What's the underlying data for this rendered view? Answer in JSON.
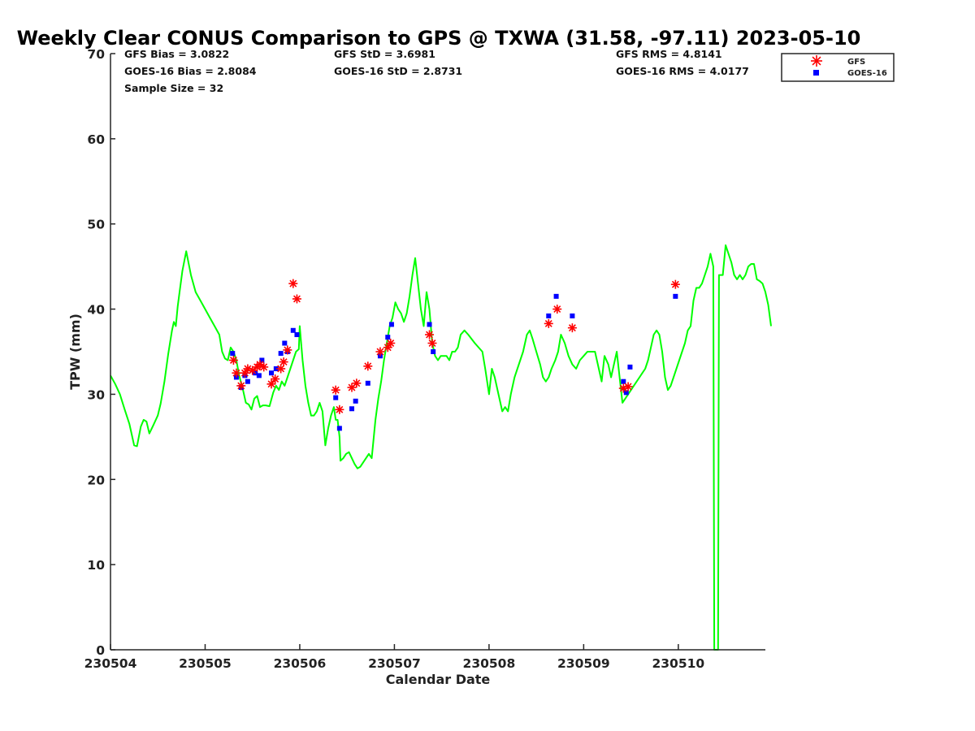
{
  "chart_data": {
    "type": "scatter",
    "title": "Weekly Clear CONUS Comparison to GPS @ TXWA (31.58, -97.11) 2023-05-10",
    "xlabel": "Calendar Date",
    "ylabel": "TPW (mm)",
    "xlim": [
      0,
      6.92
    ],
    "ylim": [
      0,
      70
    ],
    "x_ticks": [
      0,
      1,
      2,
      3,
      4,
      5,
      6
    ],
    "x_tick_labels": [
      "230504",
      "230505",
      "230506",
      "230507",
      "230508",
      "230509",
      "230510"
    ],
    "y_ticks": [
      0,
      10,
      20,
      30,
      40,
      50,
      60,
      70
    ],
    "y_tick_labels": [
      "0",
      "10",
      "20",
      "30",
      "40",
      "50",
      "60",
      "70"
    ],
    "grid": false,
    "legend_position": "top-right",
    "stats": {
      "gfs_bias": "GFS Bias = 3.0822",
      "goes_bias": "GOES-16 Bias = 2.8084",
      "sample_size": "Sample Size = 32",
      "gfs_std": "GFS StD = 3.6981",
      "goes_std": "GOES-16 StD = 2.8731",
      "gfs_rms": "GFS RMS = 4.8141",
      "goes_rms": "GOES-16 RMS = 4.0177"
    },
    "series": [
      {
        "name": "",
        "kind": "line",
        "color": "#00ff00",
        "points": [
          [
            0.0,
            32.2
          ],
          [
            0.05,
            31.2
          ],
          [
            0.1,
            30.0
          ],
          [
            0.15,
            28.2
          ],
          [
            0.2,
            26.5
          ],
          [
            0.25,
            24.0
          ],
          [
            0.28,
            23.9
          ],
          [
            0.32,
            26.2
          ],
          [
            0.35,
            27.0
          ],
          [
            0.38,
            26.8
          ],
          [
            0.41,
            25.4
          ],
          [
            0.45,
            26.3
          ],
          [
            0.5,
            27.5
          ],
          [
            0.53,
            28.9
          ],
          [
            0.57,
            31.5
          ],
          [
            0.61,
            34.7
          ],
          [
            0.65,
            37.5
          ],
          [
            0.67,
            38.5
          ],
          [
            0.69,
            38.0
          ],
          [
            0.71,
            40.3
          ],
          [
            0.73,
            42.0
          ],
          [
            0.76,
            44.5
          ],
          [
            0.8,
            46.8
          ],
          [
            0.85,
            44.0
          ],
          [
            0.9,
            42.0
          ],
          [
            0.95,
            41.0
          ],
          [
            1.0,
            40.0
          ],
          [
            1.05,
            39.0
          ],
          [
            1.1,
            38.0
          ],
          [
            1.15,
            37.0
          ],
          [
            1.18,
            35.0
          ],
          [
            1.21,
            34.2
          ],
          [
            1.24,
            34.0
          ],
          [
            1.27,
            35.5
          ],
          [
            1.3,
            35.0
          ],
          [
            1.33,
            34.0
          ],
          [
            1.36,
            32.2
          ],
          [
            1.4,
            30.5
          ],
          [
            1.43,
            29.0
          ],
          [
            1.46,
            28.8
          ],
          [
            1.49,
            28.2
          ],
          [
            1.52,
            29.5
          ],
          [
            1.55,
            29.8
          ],
          [
            1.58,
            28.5
          ],
          [
            1.61,
            28.7
          ],
          [
            1.64,
            28.7
          ],
          [
            1.68,
            28.6
          ],
          [
            1.72,
            30.2
          ],
          [
            1.75,
            31.0
          ],
          [
            1.78,
            30.5
          ],
          [
            1.81,
            31.5
          ],
          [
            1.84,
            31.0
          ],
          [
            1.87,
            32.0
          ],
          [
            1.9,
            33.0
          ],
          [
            1.93,
            34.0
          ],
          [
            1.96,
            35.0
          ],
          [
            1.99,
            35.3
          ],
          [
            2.0,
            38.0
          ],
          [
            2.03,
            34.0
          ],
          [
            2.06,
            31.0
          ],
          [
            2.09,
            29.0
          ],
          [
            2.12,
            27.5
          ],
          [
            2.15,
            27.5
          ],
          [
            2.18,
            28.0
          ],
          [
            2.21,
            29.0
          ],
          [
            2.24,
            28.0
          ],
          [
            2.27,
            24.0
          ],
          [
            2.3,
            26.0
          ],
          [
            2.33,
            27.5
          ],
          [
            2.36,
            28.5
          ],
          [
            2.38,
            27.0
          ],
          [
            2.4,
            27.0
          ],
          [
            2.42,
            25.0
          ],
          [
            2.43,
            22.2
          ],
          [
            2.46,
            22.5
          ],
          [
            2.49,
            23.0
          ],
          [
            2.52,
            23.2
          ],
          [
            2.55,
            22.5
          ],
          [
            2.58,
            21.8
          ],
          [
            2.61,
            21.3
          ],
          [
            2.64,
            21.5
          ],
          [
            2.67,
            22.0
          ],
          [
            2.7,
            22.5
          ],
          [
            2.73,
            23.0
          ],
          [
            2.76,
            22.5
          ],
          [
            2.8,
            27.0
          ],
          [
            2.83,
            29.5
          ],
          [
            2.86,
            31.5
          ],
          [
            2.89,
            34.0
          ],
          [
            2.92,
            36.0
          ],
          [
            2.95,
            38.0
          ],
          [
            2.98,
            39.0
          ],
          [
            3.01,
            40.8
          ],
          [
            3.04,
            40.0
          ],
          [
            3.07,
            39.5
          ],
          [
            3.1,
            38.5
          ],
          [
            3.13,
            39.5
          ],
          [
            3.16,
            41.5
          ],
          [
            3.19,
            44.0
          ],
          [
            3.22,
            46.0
          ],
          [
            3.25,
            43.0
          ],
          [
            3.28,
            40.0
          ],
          [
            3.31,
            38.0
          ],
          [
            3.34,
            42.0
          ],
          [
            3.37,
            40.0
          ],
          [
            3.4,
            36.0
          ],
          [
            3.43,
            34.5
          ],
          [
            3.46,
            34.0
          ],
          [
            3.49,
            34.5
          ],
          [
            3.52,
            34.5
          ],
          [
            3.55,
            34.5
          ],
          [
            3.58,
            34.0
          ],
          [
            3.61,
            35.0
          ],
          [
            3.64,
            35.0
          ],
          [
            3.67,
            35.5
          ],
          [
            3.7,
            37.0
          ],
          [
            3.74,
            37.5
          ],
          [
            3.78,
            37.0
          ],
          [
            3.85,
            36.0
          ],
          [
            3.93,
            35.0
          ],
          [
            3.96,
            33.0
          ],
          [
            4.0,
            30.0
          ],
          [
            4.03,
            33.0
          ],
          [
            4.06,
            32.0
          ],
          [
            4.1,
            30.0
          ],
          [
            4.14,
            28.0
          ],
          [
            4.17,
            28.5
          ],
          [
            4.2,
            28.0
          ],
          [
            4.23,
            30.0
          ],
          [
            4.27,
            32.0
          ],
          [
            4.3,
            33.0
          ],
          [
            4.33,
            34.0
          ],
          [
            4.36,
            35.0
          ],
          [
            4.4,
            37.0
          ],
          [
            4.43,
            37.5
          ],
          [
            4.46,
            36.5
          ],
          [
            4.5,
            35.0
          ],
          [
            4.54,
            33.5
          ],
          [
            4.57,
            32.0
          ],
          [
            4.6,
            31.5
          ],
          [
            4.63,
            32.0
          ],
          [
            4.66,
            33.0
          ],
          [
            4.7,
            34.0
          ],
          [
            4.73,
            35.0
          ],
          [
            4.76,
            37.0
          ],
          [
            4.8,
            36.0
          ],
          [
            4.84,
            34.5
          ],
          [
            4.88,
            33.5
          ],
          [
            4.92,
            33.0
          ],
          [
            4.96,
            34.0
          ],
          [
            5.0,
            34.5
          ],
          [
            5.04,
            35.0
          ],
          [
            5.08,
            35.0
          ],
          [
            5.12,
            35.0
          ],
          [
            5.16,
            33.0
          ],
          [
            5.19,
            31.5
          ],
          [
            5.22,
            34.5
          ],
          [
            5.26,
            33.5
          ],
          [
            5.29,
            32.0
          ],
          [
            5.32,
            33.5
          ],
          [
            5.35,
            35.0
          ],
          [
            5.38,
            32.0
          ],
          [
            5.41,
            29.0
          ],
          [
            5.44,
            29.5
          ],
          [
            5.47,
            30.0
          ],
          [
            5.5,
            30.5
          ],
          [
            5.53,
            31.0
          ],
          [
            5.56,
            31.5
          ],
          [
            5.59,
            32.0
          ],
          [
            5.62,
            32.5
          ],
          [
            5.65,
            33.0
          ],
          [
            5.68,
            34.0
          ],
          [
            5.71,
            35.5
          ],
          [
            5.74,
            37.0
          ],
          [
            5.77,
            37.5
          ],
          [
            5.8,
            37.0
          ],
          [
            5.83,
            35.0
          ],
          [
            5.86,
            32.0
          ],
          [
            5.89,
            30.5
          ],
          [
            5.92,
            31.0
          ],
          [
            5.95,
            32.0
          ],
          [
            5.98,
            33.0
          ],
          [
            6.01,
            34.0
          ],
          [
            6.04,
            35.0
          ],
          [
            6.07,
            36.0
          ],
          [
            6.1,
            37.5
          ],
          [
            6.13,
            38.0
          ],
          [
            6.16,
            41.0
          ],
          [
            6.19,
            42.5
          ],
          [
            6.22,
            42.5
          ],
          [
            6.25,
            43.0
          ],
          [
            6.28,
            44.0
          ],
          [
            6.31,
            45.0
          ],
          [
            6.34,
            46.5
          ],
          [
            6.37,
            45.0
          ],
          [
            6.38,
            0.0
          ],
          [
            6.42,
            0.0
          ],
          [
            6.43,
            44.0
          ],
          [
            6.47,
            44.0
          ],
          [
            6.5,
            47.5
          ],
          [
            6.53,
            46.5
          ],
          [
            6.56,
            45.5
          ],
          [
            6.59,
            44.0
          ],
          [
            6.62,
            43.5
          ],
          [
            6.65,
            44.0
          ],
          [
            6.68,
            43.5
          ],
          [
            6.71,
            44.0
          ],
          [
            6.74,
            45.0
          ],
          [
            6.77,
            45.3
          ],
          [
            6.8,
            45.3
          ],
          [
            6.83,
            43.5
          ],
          [
            6.86,
            43.3
          ],
          [
            6.89,
            43.0
          ],
          [
            6.92,
            42.0
          ],
          [
            6.95,
            40.5
          ],
          [
            6.98,
            38.0
          ]
        ]
      },
      {
        "name": "GFS",
        "kind": "scatter",
        "marker": "asterisk",
        "color": "#ff0000",
        "points": [
          [
            1.3,
            34.0
          ],
          [
            1.33,
            32.5
          ],
          [
            1.38,
            31.0
          ],
          [
            1.42,
            32.5
          ],
          [
            1.45,
            33.0
          ],
          [
            1.5,
            32.8
          ],
          [
            1.55,
            33.2
          ],
          [
            1.58,
            33.5
          ],
          [
            1.62,
            33.2
          ],
          [
            1.7,
            31.2
          ],
          [
            1.74,
            31.8
          ],
          [
            1.8,
            33.0
          ],
          [
            1.83,
            33.8
          ],
          [
            1.87,
            35.2
          ],
          [
            1.93,
            43.0
          ],
          [
            1.97,
            41.2
          ],
          [
            2.38,
            30.5
          ],
          [
            2.42,
            28.2
          ],
          [
            2.55,
            30.8
          ],
          [
            2.6,
            31.3
          ],
          [
            2.72,
            33.3
          ],
          [
            2.85,
            35.0
          ],
          [
            2.93,
            35.5
          ],
          [
            2.96,
            36.0
          ],
          [
            3.37,
            37.0
          ],
          [
            3.4,
            36.0
          ],
          [
            4.63,
            38.3
          ],
          [
            4.72,
            40.0
          ],
          [
            4.88,
            37.8
          ],
          [
            5.42,
            30.7
          ],
          [
            5.47,
            30.9
          ],
          [
            5.97,
            42.9
          ]
        ]
      },
      {
        "name": "GOES-16",
        "kind": "scatter",
        "marker": "square",
        "color": "#0000ff",
        "points": [
          [
            1.29,
            34.8
          ],
          [
            1.33,
            32.0
          ],
          [
            1.38,
            30.8
          ],
          [
            1.42,
            32.2
          ],
          [
            1.45,
            31.5
          ],
          [
            1.53,
            32.5
          ],
          [
            1.57,
            32.2
          ],
          [
            1.6,
            34.0
          ],
          [
            1.7,
            32.5
          ],
          [
            1.75,
            33.0
          ],
          [
            1.8,
            34.8
          ],
          [
            1.84,
            36.0
          ],
          [
            1.87,
            35.0
          ],
          [
            1.93,
            37.5
          ],
          [
            1.97,
            37.0
          ],
          [
            2.38,
            29.6
          ],
          [
            2.42,
            26.0
          ],
          [
            2.55,
            28.3
          ],
          [
            2.59,
            29.2
          ],
          [
            2.72,
            31.3
          ],
          [
            2.85,
            34.5
          ],
          [
            2.93,
            36.7
          ],
          [
            2.97,
            38.2
          ],
          [
            3.37,
            38.2
          ],
          [
            3.41,
            35.0
          ],
          [
            4.63,
            39.2
          ],
          [
            4.71,
            41.5
          ],
          [
            4.88,
            39.2
          ],
          [
            5.42,
            31.5
          ],
          [
            5.45,
            30.2
          ],
          [
            5.49,
            33.2
          ],
          [
            5.97,
            41.5
          ]
        ]
      }
    ]
  }
}
